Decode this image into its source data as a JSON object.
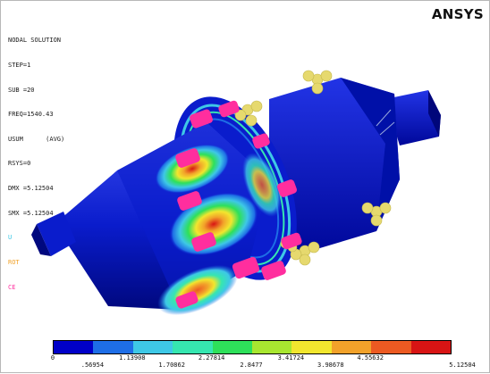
{
  "brand": "ANSYS",
  "info": {
    "line1": "NODAL SOLUTION",
    "line2": "STEP=1",
    "line3": "SUB =20",
    "line4": "FREQ=1540.43",
    "line5": "USUM      (AVG)",
    "line6": "RSYS=0",
    "line7": "DMX =5.12504",
    "line8": "SMX =5.12504",
    "mark1": "U",
    "mark2": "ROT",
    "mark3": "CE"
  },
  "legend": {
    "colors": [
      "#0000c8",
      "#1e6ee6",
      "#3ec8e6",
      "#36e6b0",
      "#2ee05a",
      "#a8e630",
      "#f2e62e",
      "#f2a22a",
      "#ec5a22",
      "#d81414"
    ],
    "top_labels": [
      "0",
      "1.13908",
      "2.27814",
      "3.41724",
      "4.55632"
    ],
    "bottom_labels": [
      ".56954",
      "1.70862",
      "2.8477",
      "3.98678",
      "5.12504"
    ]
  },
  "colors": {
    "body": "#0a1ccc",
    "body_dark": "#00089a",
    "constraint": "#e6d96e",
    "coupling": "#ff2e9e"
  }
}
